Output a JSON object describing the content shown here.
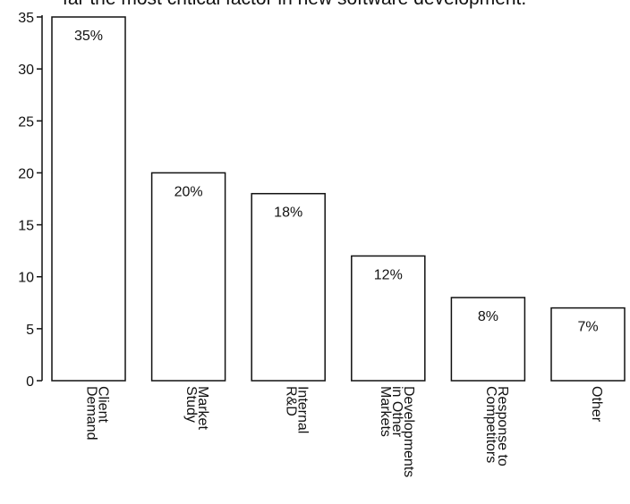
{
  "caption": "far the most critical factor in new software development.",
  "chart_data": {
    "type": "bar",
    "categories": [
      [
        "Client",
        "Demand"
      ],
      [
        "Market",
        "Study"
      ],
      [
        "Internal",
        "R&D"
      ],
      [
        "Developments",
        "in Other",
        "Markets"
      ],
      [
        "Response to",
        "Competitors"
      ],
      [
        "Other"
      ]
    ],
    "values": [
      35,
      20,
      18,
      12,
      8,
      7
    ],
    "data_labels": [
      "35%",
      "20%",
      "18%",
      "12%",
      "8%",
      "7%"
    ],
    "yticks": [
      0,
      5,
      10,
      15,
      20,
      25,
      30,
      35
    ],
    "ylim": [
      0,
      35
    ],
    "grid": false,
    "bar_color": "#ffffff",
    "stroke_color": "#111111"
  }
}
